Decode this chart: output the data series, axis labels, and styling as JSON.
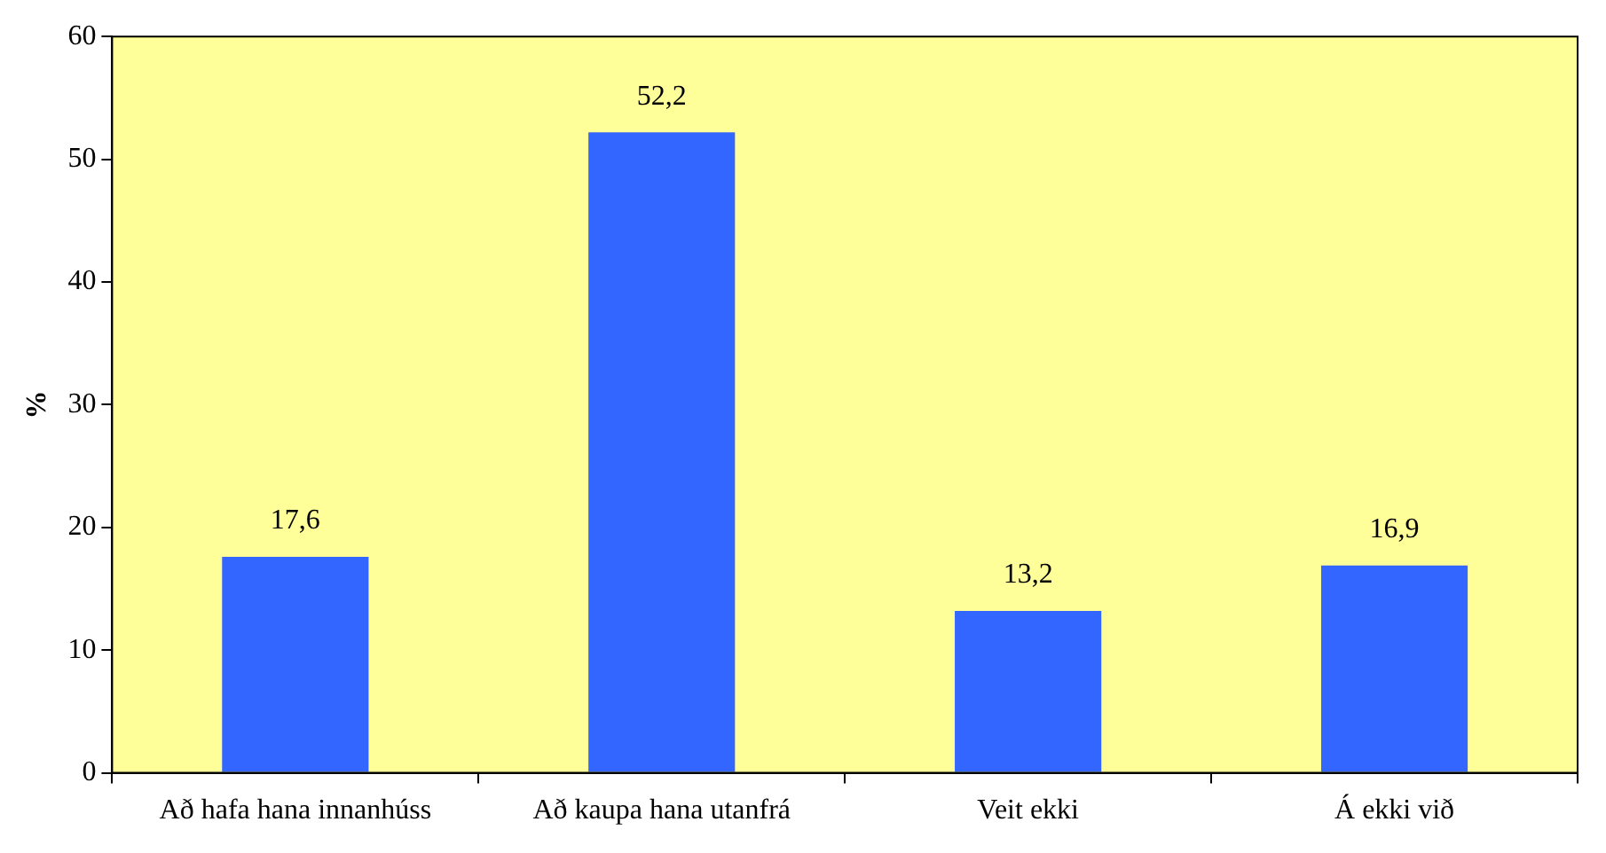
{
  "chart_data": {
    "type": "bar",
    "ylabel": "%",
    "categories": [
      "Að hafa hana innanhúss",
      "Að kaupa hana utanfrá",
      "Veit ekki",
      "Á ekki við"
    ],
    "values": [
      17.6,
      52.2,
      13.2,
      16.9
    ],
    "value_labels": [
      "17,6",
      "52,2",
      "13,2",
      "16,9"
    ],
    "color": "#3366ff",
    "ylim": [
      0,
      60
    ],
    "yticks": [
      0,
      10,
      20,
      30,
      40,
      50,
      60
    ],
    "grid": false,
    "legend": false
  }
}
